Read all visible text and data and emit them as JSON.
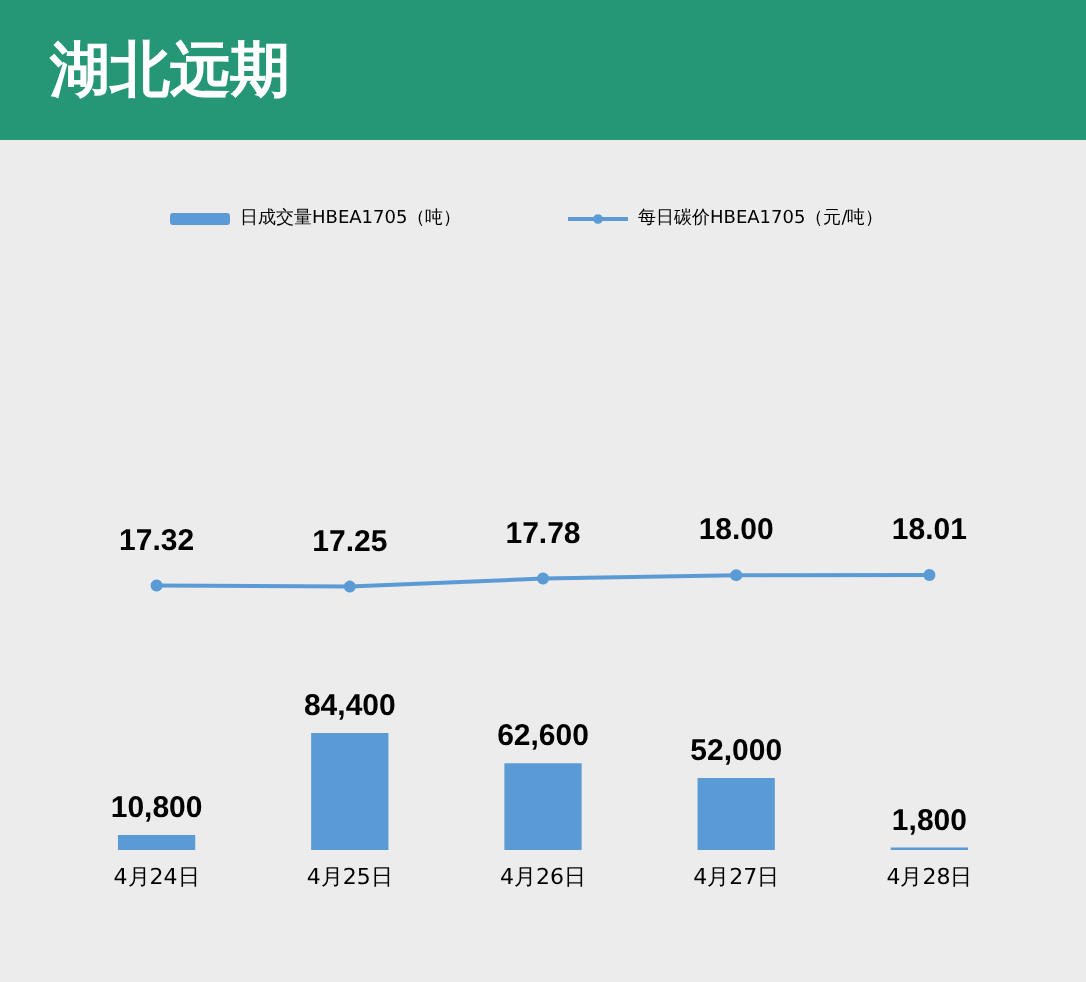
{
  "chart_data": [
    {
      "type": "bar",
      "categories": [
        "4月24日",
        "4月25日",
        "4月26日",
        "4月27日",
        "4月28日"
      ],
      "series": [
        {
          "name": "日成交量HBEA1705（吨）",
          "color": "#5b9bd5",
          "values": [
            10800,
            84400,
            62600,
            52000,
            1800
          ],
          "value_labels": [
            "10,800",
            "84,400",
            "62,600",
            "52,000",
            "1,800"
          ]
        }
      ],
      "tick_labels": "x",
      "legend": "top left"
    },
    {
      "type": "line",
      "title": "湖北远期",
      "categories": [
        null,
        null,
        null,
        null,
        null
      ],
      "series": [
        {
          "name": "每日碳价HBEA1705（元/吨）",
          "color": "#5b9bd5",
          "values": [
            17.32,
            17.25,
            17.78,
            18.0,
            18.01
          ],
          "value_labels": [
            "17.32",
            "17.25",
            "17.78",
            "18.00",
            "18.01"
          ]
        }
      ],
      "tick_labels": "x",
      "legend": "top right",
      "marker": "circle"
    }
  ]
}
